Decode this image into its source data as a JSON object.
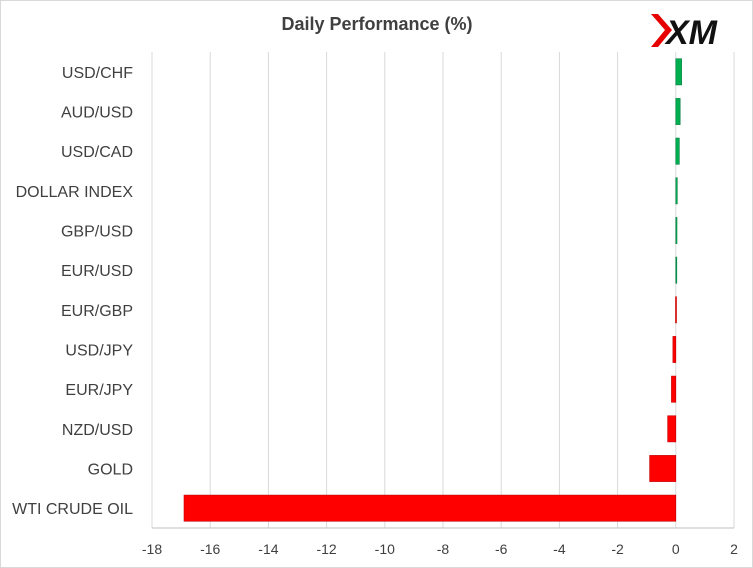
{
  "brand": {
    "logo_text": "XM"
  },
  "chart_data": {
    "type": "bar",
    "orientation": "horizontal",
    "title": "Daily Performance (%)",
    "xlabel": "",
    "ylabel": "",
    "categories": [
      "USD/CHF",
      "AUD/USD",
      "USD/CAD",
      "DOLLAR INDEX",
      "GBP/USD",
      "EUR/USD",
      "EUR/GBP",
      "USD/JPY",
      "EUR/JPY",
      "NZD/USD",
      "GOLD",
      "WTI CRUDE OIL"
    ],
    "values": [
      0.2,
      0.15,
      0.12,
      0.05,
      0.04,
      0.02,
      -0.01,
      -0.1,
      -0.15,
      -0.28,
      -0.9,
      -16.9
    ],
    "xlim": [
      -18,
      2
    ],
    "xticks": [
      -18,
      -16,
      -14,
      -12,
      -10,
      -8,
      -6,
      -4,
      -2,
      0,
      2
    ],
    "grid": "vertical",
    "legend": "none",
    "colors": {
      "positive": "#00b050",
      "negative": "#ff0000",
      "bar_edge_positive": "#007a3d",
      "bar_edge_negative": "#c00000",
      "grid": "#d9d9d9",
      "axis": "#bfbfbf",
      "text": "#404040"
    }
  }
}
